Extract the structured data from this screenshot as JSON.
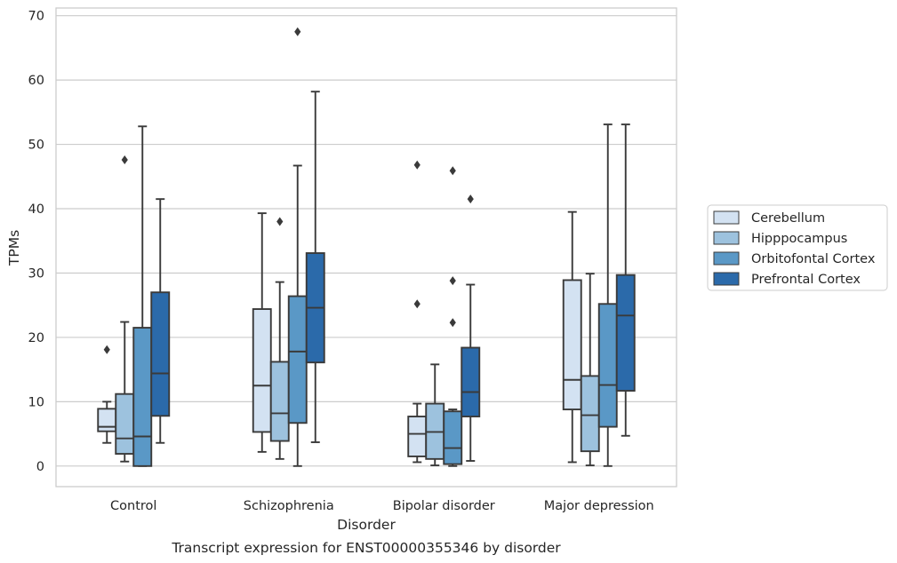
{
  "chart_data": {
    "type": "box",
    "xlabel": "Disorder",
    "ylabel": "TPMs",
    "caption": "Transcript expression for ENST00000355346 by disorder",
    "ylim": [
      -3.2,
      71.2
    ],
    "yticks": [
      0,
      10,
      20,
      30,
      40,
      50,
      60,
      70
    ],
    "grid": "horizontal",
    "legend_position": "right",
    "categories": [
      "Control",
      "Schizophrenia",
      "Bipolar disorder",
      "Major depression"
    ],
    "series": [
      {
        "name": "Cerebellum",
        "color": "#d3e2f2",
        "boxes": [
          {
            "whisker_low": 3.6,
            "q1": 5.4,
            "median": 6.1,
            "q3": 8.9,
            "whisker_high": 10.0,
            "outliers": [
              18.1
            ]
          },
          {
            "whisker_low": 2.2,
            "q1": 5.3,
            "median": 12.5,
            "q3": 24.4,
            "whisker_high": 39.3,
            "outliers": []
          },
          {
            "whisker_low": 0.6,
            "q1": 1.5,
            "median": 5.0,
            "q3": 7.7,
            "whisker_high": 9.7,
            "outliers": [
              25.2,
              46.8
            ]
          },
          {
            "whisker_low": 0.6,
            "q1": 8.8,
            "median": 13.4,
            "q3": 28.9,
            "whisker_high": 39.5,
            "outliers": []
          }
        ]
      },
      {
        "name": "Hipppocampus",
        "color": "#9dc2de",
        "boxes": [
          {
            "whisker_low": 0.7,
            "q1": 1.9,
            "median": 4.3,
            "q3": 11.2,
            "whisker_high": 22.4,
            "outliers": [
              47.6
            ]
          },
          {
            "whisker_low": 1.1,
            "q1": 3.9,
            "median": 8.2,
            "q3": 16.2,
            "whisker_high": 28.6,
            "outliers": [
              38.0
            ]
          },
          {
            "whisker_low": 0.1,
            "q1": 1.1,
            "median": 5.3,
            "q3": 9.7,
            "whisker_high": 15.8,
            "outliers": []
          },
          {
            "whisker_low": 0.1,
            "q1": 2.3,
            "median": 7.9,
            "q3": 14.0,
            "whisker_high": 29.9,
            "outliers": []
          }
        ]
      },
      {
        "name": "Orbitofontal Cortex",
        "color": "#5a98c6",
        "boxes": [
          {
            "whisker_low": 0.0,
            "q1": 0.0,
            "median": 4.6,
            "q3": 21.5,
            "whisker_high": 52.8,
            "outliers": []
          },
          {
            "whisker_low": 0.0,
            "q1": 6.7,
            "median": 17.8,
            "q3": 26.4,
            "whisker_high": 46.7,
            "outliers": [
              67.5
            ]
          },
          {
            "whisker_low": 0.0,
            "q1": 0.3,
            "median": 2.8,
            "q3": 8.5,
            "whisker_high": 8.8,
            "outliers": [
              22.3,
              28.8,
              45.9
            ]
          },
          {
            "whisker_low": 0.0,
            "q1": 6.1,
            "median": 12.6,
            "q3": 25.2,
            "whisker_high": 53.1,
            "outliers": []
          }
        ]
      },
      {
        "name": "Prefrontal Cortex",
        "color": "#2b6aaa",
        "boxes": [
          {
            "whisker_low": 3.6,
            "q1": 7.8,
            "median": 14.4,
            "q3": 27.0,
            "whisker_high": 41.5,
            "outliers": []
          },
          {
            "whisker_low": 3.7,
            "q1": 16.1,
            "median": 24.6,
            "q3": 33.1,
            "whisker_high": 58.2,
            "outliers": []
          },
          {
            "whisker_low": 0.8,
            "q1": 7.7,
            "median": 11.5,
            "q3": 18.4,
            "whisker_high": 28.2,
            "outliers": [
              41.5
            ]
          },
          {
            "whisker_low": 4.7,
            "q1": 11.7,
            "median": 23.4,
            "q3": 29.7,
            "whisker_high": 53.1,
            "outliers": []
          }
        ]
      }
    ]
  },
  "colors": {
    "grid": "#cccccc",
    "frame": "#cccccc",
    "box_edge": "#3a3a3a",
    "text": "#262626"
  }
}
